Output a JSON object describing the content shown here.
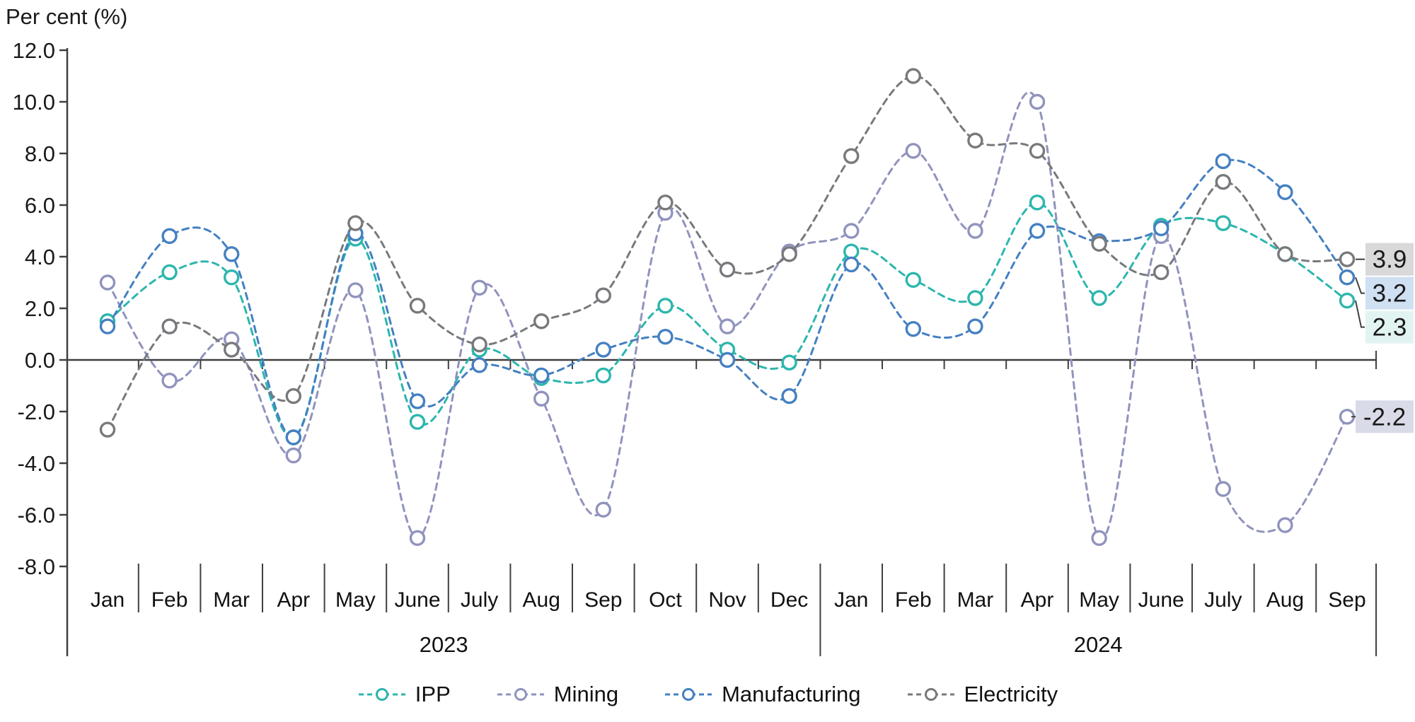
{
  "page": {
    "title_label": "Per cent (%)"
  },
  "chart_data": {
    "type": "line",
    "title": "Per cent (%)",
    "style": {
      "line": "dashed-smooth",
      "marker": "open-circle",
      "grid": false,
      "axis_color": "#3f3f3f"
    },
    "y_axis": {
      "min": -8,
      "max": 12,
      "step": 2,
      "tick_labels": [
        "12.0",
        "10.0",
        "8.0",
        "6.0",
        "4.0",
        "2.0",
        "0.0",
        "-2.0",
        "-4.0",
        "-6.0",
        "-8.0"
      ]
    },
    "x_axis": {
      "months": [
        "Jan",
        "Feb",
        "Mar",
        "Apr",
        "May",
        "June",
        "July",
        "Aug",
        "Sep",
        "Oct",
        "Nov",
        "Dec",
        "Jan",
        "Feb",
        "Mar",
        "Apr",
        "May",
        "June",
        "July",
        "Aug",
        "Sep"
      ],
      "year_groups": [
        {
          "label": "2023",
          "months": 12
        },
        {
          "label": "2024",
          "months": 9
        }
      ]
    },
    "series": [
      {
        "name": "IPP",
        "color": "#2cb6ad",
        "values": [
          1.5,
          3.4,
          3.2,
          -3.0,
          4.7,
          -2.4,
          0.4,
          -0.7,
          -0.6,
          2.1,
          0.4,
          -0.1,
          4.2,
          3.1,
          2.4,
          6.1,
          2.4,
          5.2,
          5.3,
          4.1,
          2.3
        ]
      },
      {
        "name": "Mining",
        "color": "#9093bd",
        "values": [
          3.0,
          -0.8,
          0.8,
          -3.7,
          2.7,
          -6.9,
          2.8,
          -1.5,
          -5.8,
          5.7,
          1.3,
          4.2,
          5.0,
          8.1,
          5.0,
          10.0,
          -6.9,
          4.8,
          -5.0,
          -6.4,
          -2.2
        ]
      },
      {
        "name": "Manufacturing",
        "color": "#4480c2",
        "values": [
          1.3,
          4.8,
          4.1,
          -3.0,
          4.9,
          -1.6,
          -0.2,
          -0.6,
          0.4,
          0.9,
          0.0,
          -1.4,
          3.7,
          1.2,
          1.3,
          5.0,
          4.6,
          5.1,
          7.7,
          6.5,
          3.2
        ]
      },
      {
        "name": "Electricity",
        "color": "#77797c",
        "values": [
          -2.7,
          1.3,
          0.4,
          -1.4,
          5.3,
          2.1,
          0.6,
          1.5,
          2.5,
          6.1,
          3.5,
          4.1,
          7.9,
          11.0,
          8.5,
          8.1,
          4.5,
          3.4,
          6.9,
          4.1,
          3.9
        ]
      }
    ],
    "end_labels": [
      {
        "series": "Electricity",
        "text": "3.9",
        "bg": "#d9d9d9"
      },
      {
        "series": "Manufacturing",
        "text": "3.2",
        "bg": "#cfe0f2"
      },
      {
        "series": "IPP",
        "text": "2.3",
        "bg": "#e2f4f1"
      },
      {
        "series": "Mining",
        "text": "-2.2",
        "bg": "#d9dbe8"
      }
    ],
    "legend": {
      "position": "bottom",
      "items": [
        "IPP",
        "Mining",
        "Manufacturing",
        "Electricity"
      ]
    }
  }
}
